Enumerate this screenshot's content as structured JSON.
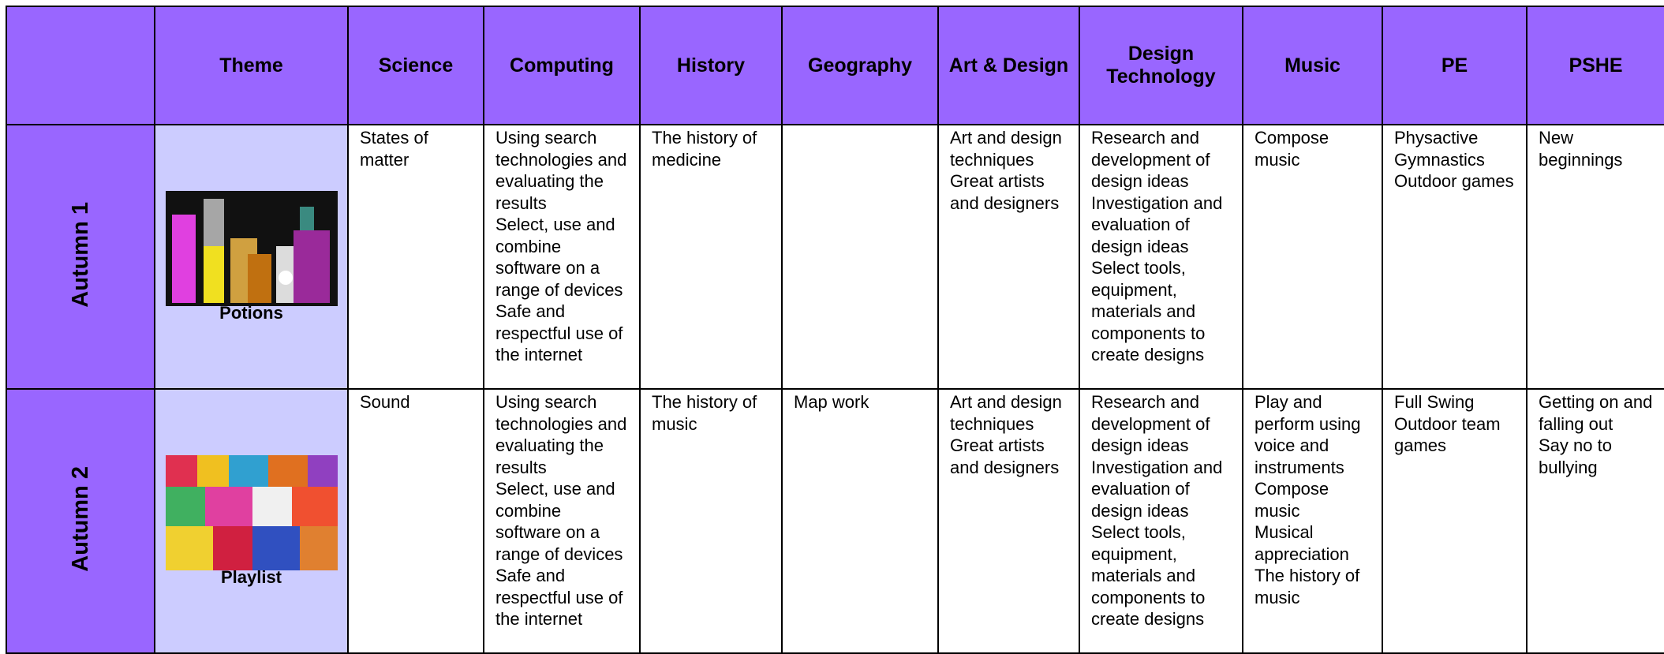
{
  "header": {
    "columns": [
      "Theme",
      "Science",
      "Computing",
      "History",
      "Geography",
      "Art & Design",
      "Design Technology",
      "Music",
      "PE",
      "PSHE"
    ]
  },
  "rows": [
    {
      "term": "Autumn 1",
      "theme": "Potions",
      "cells": [
        [
          "States of matter"
        ],
        [
          "Using search technologies and evaluating the results",
          "Select, use and combine software on a range of devices",
          "Safe and respectful use of the internet"
        ],
        [
          "The history of medicine"
        ],
        [],
        [
          "Art and design techniques",
          "Great artists and designers"
        ],
        [
          "Research and development of design ideas",
          "Investigation and evaluation of design ideas",
          "Select tools, equipment, materials and components to create designs"
        ],
        [
          "Compose music"
        ],
        [
          "Physactive",
          "Gymnastics",
          "Outdoor games"
        ],
        [
          "New beginnings"
        ]
      ]
    },
    {
      "term": "Autumn 2",
      "theme": "Playlist",
      "cells": [
        [
          "Sound"
        ],
        [
          "Using search technologies and evaluating the results",
          "Select, use and combine software on a range of devices",
          "Safe and respectful use of the internet"
        ],
        [
          "The history of music"
        ],
        [
          "Map work"
        ],
        [
          "Art and design techniques",
          "Great artists and designers"
        ],
        [
          "Research and development of design ideas",
          "Investigation and evaluation of design ideas",
          "Select tools, equipment, materials and components to create designs"
        ],
        [
          "Play and perform using voice and instruments",
          "Compose music",
          "Musical appreciation",
          "The history of music"
        ],
        [
          "Full Swing",
          "Outdoor team games"
        ],
        [
          "Getting on and falling out",
          "Say no to bullying"
        ]
      ]
    }
  ]
}
